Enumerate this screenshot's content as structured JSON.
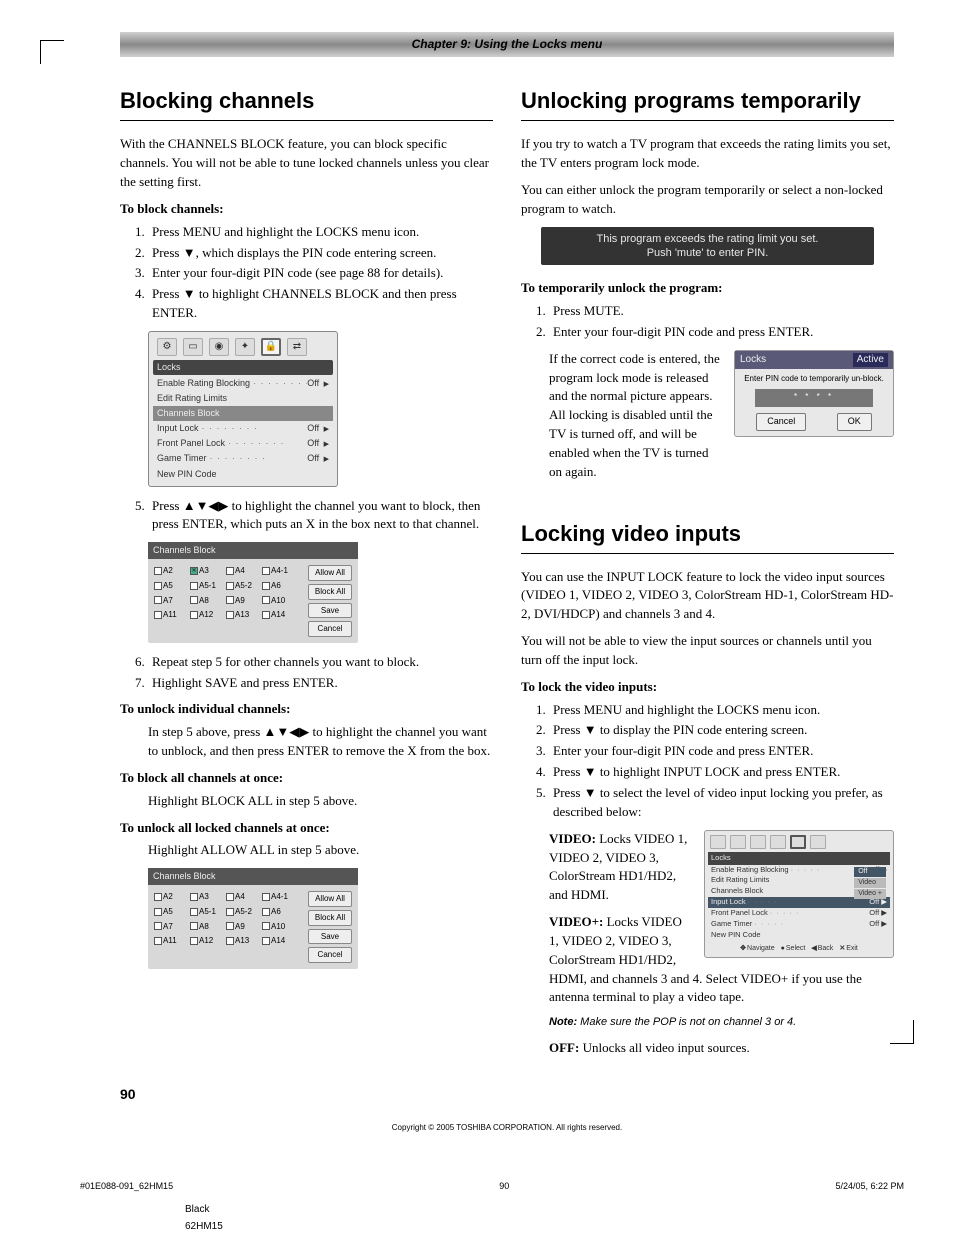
{
  "chapter": "Chapter 9: Using the Locks menu",
  "left": {
    "h1": "Blocking channels",
    "intro": "With the CHANNELS BLOCK feature, you can block specific channels. You will not be able to tune locked channels unless you clear the setting first.",
    "sub1": "To block channels:",
    "steps1": [
      "Press MENU and highlight the LOCKS menu icon.",
      "Press ▼, which displays the PIN code entering screen.",
      "Enter your four-digit PIN code (see page 88 for details).",
      "Press ▼ to highlight CHANNELS BLOCK and then press ENTER."
    ],
    "osd1": {
      "title": "Locks",
      "rows": [
        {
          "label": "Enable Rating Blocking",
          "val": "Off",
          "arrow": true
        },
        {
          "label": "Edit Rating Limits"
        },
        {
          "label": "Channels Block",
          "dark": true
        },
        {
          "label": "Input Lock",
          "val": "Off",
          "arrow": true
        },
        {
          "label": "Front Panel Lock",
          "val": "Off",
          "arrow": true
        },
        {
          "label": "Game Timer",
          "val": "Off",
          "arrow": true
        },
        {
          "label": "New PIN Code"
        }
      ]
    },
    "step5": "Press ▲▼◀▶ to highlight the channel you want to block, then press ENTER, which puts an X in the box next to that channel.",
    "osd_ch1": {
      "title": "Channels Block",
      "rows": [
        [
          {
            "t": "A2"
          },
          {
            "t": "A3",
            "x": true,
            "sel": true
          },
          {
            "t": "A4"
          },
          {
            "t": "A4-1"
          }
        ],
        [
          {
            "t": "A5"
          },
          {
            "t": "A5-1"
          },
          {
            "t": "A5-2"
          },
          {
            "t": "A6"
          }
        ],
        [
          {
            "t": "A7"
          },
          {
            "t": "A8"
          },
          {
            "t": "A9"
          },
          {
            "t": "A10"
          }
        ],
        [
          {
            "t": "A11"
          },
          {
            "t": "A12"
          },
          {
            "t": "A13"
          },
          {
            "t": "A14"
          }
        ]
      ],
      "buttons": [
        "Allow All",
        "Block All",
        "Save",
        "Cancel"
      ]
    },
    "step6": "Repeat step 5 for other channels you want to block.",
    "step7": "Highlight SAVE and press ENTER.",
    "sub2": "To unlock individual channels:",
    "unlock_ind": "In step 5 above, press ▲▼◀▶ to highlight the channel you want to unblock, and then press ENTER to remove the X from the box.",
    "sub3": "To block all channels at once:",
    "block_all": "Highlight BLOCK ALL in step 5 above.",
    "sub4": "To unlock all locked channels at once:",
    "unlock_all": "Highlight ALLOW ALL in step 5 above.",
    "osd_ch2": {
      "title": "Channels Block",
      "rows": [
        [
          {
            "t": "A2"
          },
          {
            "t": "A3"
          },
          {
            "t": "A4"
          },
          {
            "t": "A4-1"
          }
        ],
        [
          {
            "t": "A5"
          },
          {
            "t": "A5-1"
          },
          {
            "t": "A5-2"
          },
          {
            "t": "A6"
          }
        ],
        [
          {
            "t": "A7"
          },
          {
            "t": "A8"
          },
          {
            "t": "A9"
          },
          {
            "t": "A10"
          }
        ],
        [
          {
            "t": "A11"
          },
          {
            "t": "A12"
          },
          {
            "t": "A13"
          },
          {
            "t": "A14"
          }
        ]
      ],
      "buttons": [
        "Allow All",
        "Block All",
        "Save",
        "Cancel"
      ]
    }
  },
  "right": {
    "h1a": "Unlocking programs temporarily",
    "p1": "If you try to watch a TV program that exceeds the rating limits you set, the TV enters program lock mode.",
    "p2": "You can either unlock the program temporarily or select a non-locked program to watch.",
    "msg1": "This program exceeds the rating limit you set.",
    "msg2": "Push 'mute' to enter PIN.",
    "sub1": "To temporarily unlock the program:",
    "steps1": [
      "Press MUTE.",
      "Enter your four-digit PIN code and press ENTER."
    ],
    "after": "If the correct code is entered, the program lock mode is released and the normal picture appears. All locking is disabled until the TV is turned off, and will be enabled when the TV is turned on again.",
    "osd_pin": {
      "title": "Locks",
      "active": "Active",
      "msg": "Enter PIN code to temporarily un-block.",
      "stars": "* * * *",
      "cancel": "Cancel",
      "ok": "OK"
    },
    "h1b": "Locking video inputs",
    "p3": "You can use the INPUT LOCK feature to lock the video input sources (VIDEO 1, VIDEO 2, VIDEO 3, ColorStream HD-1, ColorStream HD-2, DVI/HDCP) and channels 3 and 4.",
    "p4": "You will not be able to view the input sources or channels until you turn off the input lock.",
    "sub2": "To lock the video inputs:",
    "steps2": [
      "Press MENU and highlight the LOCKS menu icon.",
      "Press ▼ to display the PIN code entering screen.",
      "Enter your four-digit PIN code and press ENTER.",
      "Press ▼ to highlight INPUT LOCK and press ENTER.",
      "Press ▼ to select the level of video input locking you prefer, as described below:"
    ],
    "video_label": "VIDEO:",
    "video_txt": " Locks VIDEO 1, VIDEO 2, VIDEO 3, ColorStream HD1/HD2, and HDMI.",
    "videop_label": "VIDEO+:",
    "videop_txt": " Locks VIDEO 1, VIDEO 2, VIDEO 3, ColorStream HD1/HD2, HDMI, and channels 3 and 4. Select VIDEO+ if you use the antenna terminal to play a video tape.",
    "note_label": "Note:",
    "note_txt": " Make sure the POP is not on channel 3 or 4.",
    "off_label": "OFF:",
    "off_txt": " Unlocks all video input sources.",
    "osd_input": {
      "title": "Locks",
      "rows": [
        {
          "label": "Enable Rating Blocking",
          "val": "Off",
          "arrow": true
        },
        {
          "label": "Edit Rating Limits"
        },
        {
          "label": "Channels Block"
        },
        {
          "label": "Input Lock",
          "val": "Off",
          "arrow": true,
          "hl": true
        },
        {
          "label": "Front Panel Lock",
          "val": "Off",
          "arrow": true
        },
        {
          "label": "Game Timer",
          "val": "Off",
          "arrow": true
        },
        {
          "label": "New PIN Code"
        }
      ],
      "opts": [
        {
          "t": "Off",
          "sel": true
        },
        {
          "t": "Video"
        },
        {
          "t": "Video +"
        }
      ],
      "nav": [
        "Navigate",
        "Select",
        "Back",
        "Exit"
      ]
    }
  },
  "page_num": "90",
  "copyright": "Copyright © 2005 TOSHIBA CORPORATION. All rights reserved.",
  "footer": {
    "left": "#01E088-091_62HM15",
    "mid": "90",
    "right": "5/24/05, 6:22 PM",
    "black": "Black",
    "model": "62HM15"
  }
}
